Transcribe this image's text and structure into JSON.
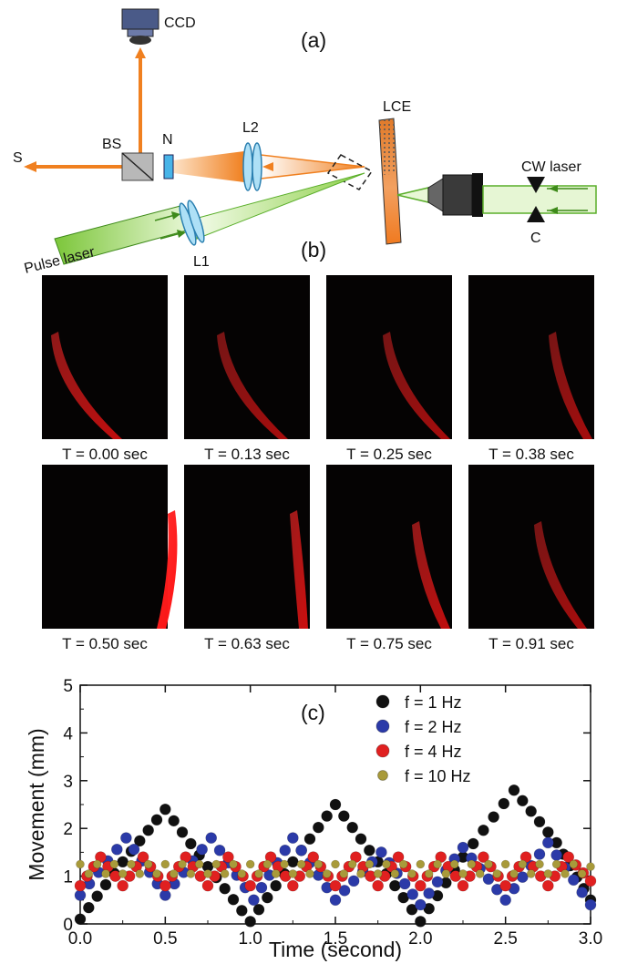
{
  "panel_a": {
    "label": "(a)",
    "components": {
      "ccd": "CCD",
      "bs": "BS",
      "n": "N",
      "s": "S",
      "l2": "L2",
      "lce": "LCE",
      "cw_laser": "CW laser",
      "c": "C",
      "pulse_laser": "Pulse laser",
      "l1": "L1"
    }
  },
  "panel_b": {
    "label": "(b)",
    "frames": [
      {
        "caption": "T = 0.00 sec",
        "brightness": 0.55
      },
      {
        "caption": "T = 0.13 sec",
        "brightness": 0.45
      },
      {
        "caption": "T = 0.25 sec",
        "brightness": 0.45
      },
      {
        "caption": "T = 0.38 sec",
        "brightness": 0.45
      },
      {
        "caption": "T = 0.50 sec",
        "brightness": 0.95
      },
      {
        "caption": "T = 0.63 sec",
        "brightness": 0.6
      },
      {
        "caption": "T = 0.75 sec",
        "brightness": 0.55
      },
      {
        "caption": "T = 0.91 sec",
        "brightness": 0.45
      }
    ]
  },
  "panel_c": {
    "label": "(c)"
  },
  "chart_data": {
    "type": "scatter",
    "xlabel": "Time (second)",
    "ylabel": "Movement (mm)",
    "xlim": [
      0,
      3.0
    ],
    "ylim": [
      0,
      5
    ],
    "xticks": [
      "0.0",
      "0.5",
      "1.0",
      "1.5",
      "2.0",
      "2.5",
      "3.0"
    ],
    "yticks": [
      "0",
      "1",
      "2",
      "3",
      "4",
      "5"
    ],
    "legend_position": "top-right",
    "series": [
      {
        "name": "f = 1 Hz",
        "color": "#111111",
        "x": [
          0.0,
          0.25,
          0.5,
          0.75,
          1.0,
          1.25,
          1.5,
          1.75,
          2.0,
          2.25,
          2.55,
          2.8,
          3.0
        ],
        "y": [
          0.1,
          1.3,
          2.4,
          1.2,
          0.05,
          1.3,
          2.5,
          1.3,
          0.05,
          1.4,
          2.8,
          1.7,
          0.5
        ]
      },
      {
        "name": "f = 2 Hz",
        "color": "#2b3aa8",
        "x": [
          0.0,
          0.27,
          0.5,
          0.77,
          1.02,
          1.25,
          1.5,
          1.77,
          2.0,
          2.25,
          2.5,
          2.75,
          3.0
        ],
        "y": [
          0.6,
          1.8,
          0.6,
          1.8,
          0.5,
          1.8,
          0.5,
          1.5,
          0.4,
          1.6,
          0.5,
          1.7,
          0.4
        ]
      },
      {
        "name": "f = 4 Hz",
        "color": "#e02020",
        "x": [
          0.0,
          0.12,
          0.25,
          0.37,
          0.5,
          0.62,
          0.75,
          0.87,
          1.0,
          1.12,
          1.25,
          1.37,
          1.5,
          1.62,
          1.75,
          1.87,
          2.0,
          2.12,
          2.25,
          2.37,
          2.5,
          2.62,
          2.75,
          2.87,
          3.0
        ],
        "y": [
          0.8,
          1.4,
          0.8,
          1.4,
          0.8,
          1.4,
          0.8,
          1.4,
          0.8,
          1.4,
          0.8,
          1.4,
          0.8,
          1.4,
          0.8,
          1.4,
          0.8,
          1.4,
          0.8,
          1.4,
          0.8,
          1.4,
          0.8,
          1.4,
          0.9
        ]
      },
      {
        "name": "f = 10 Hz",
        "color": "#a89a3a",
        "x": [
          0.0,
          0.05,
          0.1,
          0.15,
          0.2,
          0.25,
          0.3,
          0.35,
          0.4,
          0.45,
          0.5,
          0.55,
          0.6,
          0.65,
          0.7,
          0.75,
          0.8,
          0.85,
          0.9,
          0.95,
          1.0,
          1.05,
          1.1,
          1.15,
          1.2,
          1.25,
          1.3,
          1.35,
          1.4,
          1.45,
          1.5,
          1.55,
          1.6,
          1.65,
          1.7,
          1.75,
          1.8,
          1.85,
          1.9,
          1.95,
          2.0,
          2.05,
          2.1,
          2.15,
          2.2,
          2.25,
          2.3,
          2.35,
          2.4,
          2.45,
          2.5,
          2.55,
          2.6,
          2.65,
          2.7,
          2.75,
          2.8,
          2.85,
          2.9,
          2.95,
          3.0
        ],
        "y": [
          1.25,
          1.05,
          1.25,
          1.05,
          1.25,
          1.05,
          1.25,
          1.05,
          1.25,
          1.05,
          1.25,
          1.05,
          1.25,
          1.05,
          1.25,
          1.05,
          1.25,
          1.05,
          1.25,
          1.05,
          1.25,
          1.05,
          1.25,
          1.05,
          1.25,
          1.05,
          1.25,
          1.05,
          1.25,
          1.05,
          1.25,
          1.05,
          1.25,
          1.05,
          1.25,
          1.05,
          1.25,
          1.05,
          1.25,
          1.05,
          1.25,
          1.05,
          1.25,
          1.05,
          1.25,
          1.05,
          1.25,
          1.05,
          1.25,
          1.05,
          1.25,
          1.05,
          1.25,
          1.05,
          1.25,
          1.05,
          1.25,
          1.05,
          1.25,
          1.05,
          1.2
        ]
      }
    ]
  }
}
